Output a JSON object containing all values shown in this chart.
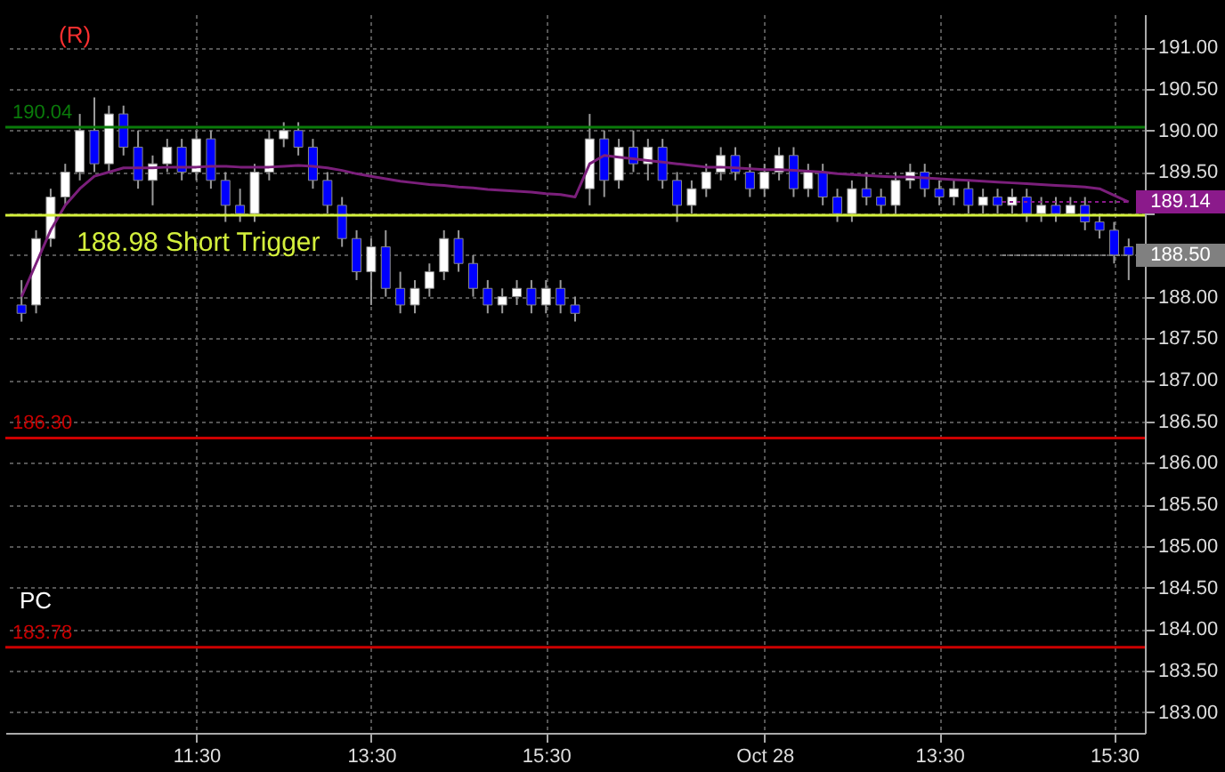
{
  "chart_data": {
    "type": "candlestick",
    "categories": [
      null,
      null,
      null,
      null,
      null,
      null,
      null,
      null,
      null,
      null,
      null,
      null,
      "11:30",
      null,
      null,
      null,
      null,
      null,
      null,
      null,
      null,
      null,
      null,
      null,
      "13:30",
      null,
      null,
      null,
      null,
      null,
      null,
      null,
      null,
      null,
      null,
      null,
      "15:30",
      null,
      null,
      null,
      null,
      null,
      null,
      null,
      null,
      null,
      null,
      null,
      null,
      null,
      null,
      "Oct 28",
      null,
      null,
      null,
      null,
      null,
      null,
      null,
      null,
      null,
      null,
      null,
      "13:30",
      null,
      null,
      null,
      null,
      null,
      null,
      null,
      null,
      null,
      null,
      null,
      "15:30",
      null
    ],
    "ohlc": [
      [
        187.9,
        188.2,
        187.7,
        187.8
      ],
      [
        187.9,
        188.8,
        187.8,
        188.7
      ],
      [
        188.7,
        189.3,
        188.6,
        189.2
      ],
      [
        189.2,
        189.6,
        189.1,
        189.5
      ],
      [
        189.5,
        190.2,
        189.4,
        190.0
      ],
      [
        190.0,
        190.4,
        189.5,
        189.6
      ],
      [
        189.6,
        190.3,
        189.5,
        190.2
      ],
      [
        190.2,
        190.3,
        189.7,
        189.8
      ],
      [
        189.8,
        190.0,
        189.3,
        189.4
      ],
      [
        189.4,
        189.7,
        189.1,
        189.6
      ],
      [
        189.6,
        189.9,
        189.5,
        189.8
      ],
      [
        189.8,
        189.9,
        189.4,
        189.5
      ],
      [
        189.5,
        190.0,
        189.4,
        189.9
      ],
      [
        189.9,
        190.0,
        189.3,
        189.4
      ],
      [
        189.4,
        189.5,
        188.9,
        189.1
      ],
      [
        189.1,
        189.3,
        188.9,
        189.0
      ],
      [
        189.0,
        189.6,
        188.9,
        189.5
      ],
      [
        189.5,
        190.0,
        189.4,
        189.9
      ],
      [
        189.9,
        190.1,
        189.8,
        190.0
      ],
      [
        190.0,
        190.1,
        189.7,
        189.8
      ],
      [
        189.8,
        189.9,
        189.3,
        189.4
      ],
      [
        189.4,
        189.5,
        189.0,
        189.1
      ],
      [
        189.1,
        189.2,
        188.6,
        188.7
      ],
      [
        188.7,
        188.8,
        188.2,
        188.3
      ],
      [
        188.3,
        188.7,
        187.9,
        188.6
      ],
      [
        188.6,
        188.8,
        188.0,
        188.1
      ],
      [
        188.1,
        188.3,
        187.8,
        187.9
      ],
      [
        187.9,
        188.2,
        187.8,
        188.1
      ],
      [
        188.1,
        188.4,
        188.0,
        188.3
      ],
      [
        188.3,
        188.8,
        188.2,
        188.7
      ],
      [
        188.7,
        188.8,
        188.3,
        188.4
      ],
      [
        188.4,
        188.5,
        188.0,
        188.1
      ],
      [
        188.1,
        188.2,
        187.8,
        187.9
      ],
      [
        187.9,
        188.1,
        187.8,
        188.0
      ],
      [
        188.0,
        188.2,
        187.9,
        188.1
      ],
      [
        188.1,
        188.2,
        187.8,
        187.9
      ],
      [
        187.9,
        188.2,
        187.8,
        188.1
      ],
      [
        188.1,
        188.2,
        187.8,
        187.9
      ],
      [
        187.9,
        188.0,
        187.7,
        187.8
      ],
      [
        189.3,
        190.2,
        189.1,
        189.9
      ],
      [
        189.9,
        190.0,
        189.2,
        189.4
      ],
      [
        189.4,
        189.9,
        189.3,
        189.8
      ],
      [
        189.8,
        190.0,
        189.5,
        189.6
      ],
      [
        189.6,
        189.9,
        189.4,
        189.8
      ],
      [
        189.8,
        189.9,
        189.3,
        189.4
      ],
      [
        189.4,
        189.5,
        188.9,
        189.1
      ],
      [
        189.1,
        189.4,
        189.0,
        189.3
      ],
      [
        189.3,
        189.6,
        189.2,
        189.5
      ],
      [
        189.5,
        189.8,
        189.4,
        189.7
      ],
      [
        189.7,
        189.8,
        189.4,
        189.5
      ],
      [
        189.5,
        189.6,
        189.2,
        189.3
      ],
      [
        189.3,
        189.6,
        189.2,
        189.5
      ],
      [
        189.5,
        189.8,
        189.4,
        189.7
      ],
      [
        189.7,
        189.8,
        189.2,
        189.3
      ],
      [
        189.3,
        189.6,
        189.2,
        189.5
      ],
      [
        189.5,
        189.6,
        189.1,
        189.2
      ],
      [
        189.2,
        189.3,
        188.9,
        189.0
      ],
      [
        189.0,
        189.4,
        188.9,
        189.3
      ],
      [
        189.3,
        189.5,
        189.1,
        189.2
      ],
      [
        189.2,
        189.3,
        189.0,
        189.1
      ],
      [
        189.1,
        189.5,
        189.0,
        189.4
      ],
      [
        189.4,
        189.6,
        189.3,
        189.5
      ],
      [
        189.5,
        189.6,
        189.2,
        189.3
      ],
      [
        189.3,
        189.4,
        189.1,
        189.2
      ],
      [
        189.2,
        189.4,
        189.1,
        189.3
      ],
      [
        189.3,
        189.4,
        189.0,
        189.1
      ],
      [
        189.1,
        189.3,
        189.0,
        189.2
      ],
      [
        189.2,
        189.3,
        189.0,
        189.1
      ],
      [
        189.1,
        189.3,
        189.0,
        189.2
      ],
      [
        189.2,
        189.3,
        188.9,
        189.0
      ],
      [
        189.0,
        189.2,
        188.9,
        189.1
      ],
      [
        189.1,
        189.2,
        188.9,
        189.0
      ],
      [
        189.0,
        189.2,
        189.0,
        189.1
      ],
      [
        189.1,
        189.2,
        188.8,
        188.9
      ],
      [
        188.9,
        189.0,
        188.7,
        188.8
      ],
      [
        188.8,
        188.9,
        188.4,
        188.5
      ],
      [
        188.6,
        188.7,
        188.2,
        188.5
      ]
    ],
    "colors": [
      "#0000ff",
      "#ffffff",
      "#ffffff",
      "#ffffff",
      "#ffffff",
      "#0000ff",
      "#ffffff",
      "#0000ff",
      "#0000ff",
      "#ffffff",
      "#ffffff",
      "#0000ff",
      "#ffffff",
      "#0000ff",
      "#0000ff",
      "#0000ff",
      "#ffffff",
      "#ffffff",
      "#ffffff",
      "#0000ff",
      "#0000ff",
      "#0000ff",
      "#0000ff",
      "#0000ff",
      "#ffffff",
      "#0000ff",
      "#0000ff",
      "#ffffff",
      "#ffffff",
      "#ffffff",
      "#0000ff",
      "#0000ff",
      "#0000ff",
      "#ffffff",
      "#ffffff",
      "#0000ff",
      "#ffffff",
      "#0000ff",
      "#0000ff",
      "#ffffff",
      "#0000ff",
      "#ffffff",
      "#0000ff",
      "#ffffff",
      "#0000ff",
      "#0000ff",
      "#ffffff",
      "#ffffff",
      "#ffffff",
      "#0000ff",
      "#0000ff",
      "#ffffff",
      "#ffffff",
      "#0000ff",
      "#ffffff",
      "#0000ff",
      "#0000ff",
      "#ffffff",
      "#0000ff",
      "#0000ff",
      "#ffffff",
      "#ffffff",
      "#0000ff",
      "#0000ff",
      "#ffffff",
      "#0000ff",
      "#ffffff",
      "#0000ff",
      "#ffffff",
      "#0000ff",
      "#ffffff",
      "#0000ff",
      "#ffffff",
      "#0000ff",
      "#0000ff",
      "#0000ff",
      "#0000ff"
    ],
    "series": [
      {
        "type": "line",
        "color": "#7b1f7b",
        "values": [
          188.0,
          188.4,
          188.8,
          189.1,
          189.3,
          189.45,
          189.5,
          189.55,
          189.55,
          189.55,
          189.56,
          189.56,
          189.56,
          189.57,
          189.57,
          189.56,
          189.56,
          189.56,
          189.57,
          189.58,
          189.57,
          189.55,
          189.52,
          189.48,
          189.45,
          189.42,
          189.39,
          189.37,
          189.35,
          189.34,
          189.32,
          189.31,
          189.29,
          189.28,
          189.27,
          189.26,
          189.24,
          189.23,
          189.2,
          189.6,
          189.7,
          189.68,
          189.66,
          189.64,
          189.62,
          189.6,
          189.58,
          189.56,
          189.56,
          189.55,
          189.54,
          189.53,
          189.53,
          189.52,
          189.51,
          189.5,
          189.48,
          189.47,
          189.46,
          189.45,
          189.44,
          189.44,
          189.43,
          189.42,
          189.41,
          189.4,
          189.39,
          189.38,
          189.37,
          189.36,
          189.35,
          189.34,
          189.33,
          189.32,
          189.3,
          189.22,
          189.14
        ]
      }
    ],
    "ylim": [
      182.75,
      191.4
    ],
    "yticks": [
      {
        "value": 183,
        "label": "183.00"
      },
      {
        "value": 183.5,
        "label": "183.50"
      },
      {
        "value": 184,
        "label": "184.00"
      },
      {
        "value": 184.5,
        "label": "184.50"
      },
      {
        "value": 185,
        "label": "185.00"
      },
      {
        "value": 185.5,
        "label": "185.50"
      },
      {
        "value": 186,
        "label": "186.00"
      },
      {
        "value": 186.5,
        "label": "186.50"
      },
      {
        "value": 187,
        "label": "187.00"
      },
      {
        "value": 187.5,
        "label": "187.50"
      },
      {
        "value": 188,
        "label": "188.00"
      },
      {
        "value": 188.5,
        "label": null
      },
      {
        "value": 189,
        "label": null
      },
      {
        "value": 189.5,
        "label": "189.50"
      },
      {
        "value": 190,
        "label": "190.00"
      },
      {
        "value": 190.5,
        "label": "190.50"
      },
      {
        "value": 191,
        "label": "191.00"
      }
    ],
    "grid": true,
    "ref_lines": [
      {
        "axis": "y",
        "value": 190.04,
        "label": "190.04",
        "color": "#0a7a0a",
        "line_style": "solid"
      },
      {
        "axis": "y",
        "value": 188.98,
        "label": "188.98 Short Trigger",
        "color": "#d4f03c",
        "line_style": "solid"
      },
      {
        "axis": "y",
        "value": 186.3,
        "label": "186.30",
        "color": "#cc0000",
        "line_style": "solid"
      },
      {
        "axis": "y",
        "value": 183.78,
        "label": "183.78",
        "color": "#cc0000",
        "line_style": "solid"
      },
      {
        "axis": "y",
        "value": 189.14,
        "label": "189.14",
        "color": "#8b1a8b",
        "line_style": "dotted"
      },
      {
        "axis": "y",
        "value": 188.5,
        "label": "188.50",
        "color": "#808080",
        "line_style": "dotted"
      }
    ],
    "annotations": [
      "(R)",
      "PC"
    ]
  }
}
